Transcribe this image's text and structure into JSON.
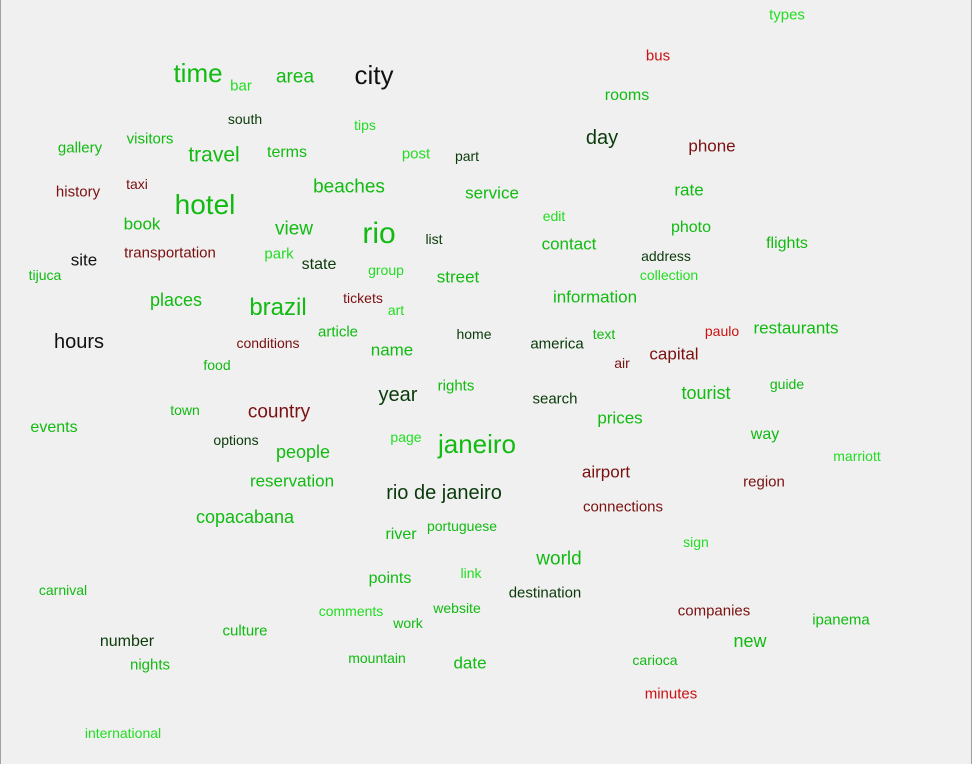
{
  "palette": {
    "bright_green": "#22dd22",
    "green": "#11bb11",
    "dark_green": "#117711",
    "darkest_green": "#0a3a0a",
    "black": "#111111",
    "red": "#cc1111",
    "dark_red": "#7a1010"
  },
  "words": [
    {
      "text": "types",
      "tone": "bright_green",
      "size": 15
    },
    {
      "text": "bus",
      "tone": "red",
      "size": 15
    },
    {
      "text": "time",
      "tone": "green",
      "size": 26
    },
    {
      "text": "bar",
      "tone": "bright_green",
      "size": 15
    },
    {
      "text": "area",
      "tone": "green",
      "size": 19
    },
    {
      "text": "city",
      "tone": "black",
      "size": 26
    },
    {
      "text": "rooms",
      "tone": "green",
      "size": 16
    },
    {
      "text": "south",
      "tone": "darkest_green",
      "size": 14
    },
    {
      "text": "tips",
      "tone": "bright_green",
      "size": 14
    },
    {
      "text": "visitors",
      "tone": "green",
      "size": 15
    },
    {
      "text": "gallery",
      "tone": "green",
      "size": 15
    },
    {
      "text": "travel",
      "tone": "green",
      "size": 21
    },
    {
      "text": "terms",
      "tone": "green",
      "size": 16
    },
    {
      "text": "post",
      "tone": "bright_green",
      "size": 15
    },
    {
      "text": "part",
      "tone": "darkest_green",
      "size": 14
    },
    {
      "text": "day",
      "tone": "darkest_green",
      "size": 20
    },
    {
      "text": "phone",
      "tone": "dark_red",
      "size": 17
    },
    {
      "text": "history",
      "tone": "dark_red",
      "size": 15
    },
    {
      "text": "taxi",
      "tone": "dark_red",
      "size": 14
    },
    {
      "text": "beaches",
      "tone": "green",
      "size": 19
    },
    {
      "text": "service",
      "tone": "green",
      "size": 17
    },
    {
      "text": "rate",
      "tone": "green",
      "size": 17
    },
    {
      "text": "hotel",
      "tone": "green",
      "size": 28
    },
    {
      "text": "edit",
      "tone": "bright_green",
      "size": 14
    },
    {
      "text": "book",
      "tone": "green",
      "size": 17
    },
    {
      "text": "view",
      "tone": "green",
      "size": 19
    },
    {
      "text": "rio",
      "tone": "green",
      "size": 30
    },
    {
      "text": "list",
      "tone": "darkest_green",
      "size": 14
    },
    {
      "text": "photo",
      "tone": "green",
      "size": 16
    },
    {
      "text": "contact",
      "tone": "green",
      "size": 17
    },
    {
      "text": "flights",
      "tone": "green",
      "size": 16
    },
    {
      "text": "site",
      "tone": "black",
      "size": 17
    },
    {
      "text": "transportation",
      "tone": "dark_red",
      "size": 15
    },
    {
      "text": "park",
      "tone": "bright_green",
      "size": 15
    },
    {
      "text": "state",
      "tone": "darkest_green",
      "size": 16
    },
    {
      "text": "address",
      "tone": "darkest_green",
      "size": 14
    },
    {
      "text": "tijuca",
      "tone": "green",
      "size": 14
    },
    {
      "text": "group",
      "tone": "bright_green",
      "size": 14
    },
    {
      "text": "street",
      "tone": "green",
      "size": 17
    },
    {
      "text": "collection",
      "tone": "bright_green",
      "size": 14
    },
    {
      "text": "tickets",
      "tone": "dark_red",
      "size": 14
    },
    {
      "text": "information",
      "tone": "green",
      "size": 17
    },
    {
      "text": "places",
      "tone": "green",
      "size": 18
    },
    {
      "text": "brazil",
      "tone": "green",
      "size": 24
    },
    {
      "text": "art",
      "tone": "bright_green",
      "size": 14
    },
    {
      "text": "restaurants",
      "tone": "green",
      "size": 17
    },
    {
      "text": "article",
      "tone": "green",
      "size": 15
    },
    {
      "text": "home",
      "tone": "darkest_green",
      "size": 14
    },
    {
      "text": "text",
      "tone": "green",
      "size": 14
    },
    {
      "text": "paulo",
      "tone": "red",
      "size": 14
    },
    {
      "text": "hours",
      "tone": "black",
      "size": 20
    },
    {
      "text": "conditions",
      "tone": "dark_red",
      "size": 14
    },
    {
      "text": "name",
      "tone": "green",
      "size": 17
    },
    {
      "text": "america",
      "tone": "darkest_green",
      "size": 15
    },
    {
      "text": "capital",
      "tone": "dark_red",
      "size": 17
    },
    {
      "text": "food",
      "tone": "green",
      "size": 14
    },
    {
      "text": "air",
      "tone": "dark_red",
      "size": 14
    },
    {
      "text": "rights",
      "tone": "green",
      "size": 15
    },
    {
      "text": "year",
      "tone": "darkest_green",
      "size": 20
    },
    {
      "text": "tourist",
      "tone": "green",
      "size": 18
    },
    {
      "text": "guide",
      "tone": "green",
      "size": 14
    },
    {
      "text": "search",
      "tone": "darkest_green",
      "size": 15
    },
    {
      "text": "town",
      "tone": "green",
      "size": 14
    },
    {
      "text": "country",
      "tone": "dark_red",
      "size": 19
    },
    {
      "text": "prices",
      "tone": "green",
      "size": 17
    },
    {
      "text": "events",
      "tone": "green",
      "size": 16
    },
    {
      "text": "options",
      "tone": "darkest_green",
      "size": 14
    },
    {
      "text": "page",
      "tone": "bright_green",
      "size": 14
    },
    {
      "text": "janeiro",
      "tone": "green",
      "size": 26
    },
    {
      "text": "way",
      "tone": "green",
      "size": 16
    },
    {
      "text": "people",
      "tone": "green",
      "size": 18
    },
    {
      "text": "marriott",
      "tone": "bright_green",
      "size": 14
    },
    {
      "text": "airport",
      "tone": "dark_red",
      "size": 17
    },
    {
      "text": "reservation",
      "tone": "green",
      "size": 17
    },
    {
      "text": "region",
      "tone": "dark_red",
      "size": 15
    },
    {
      "text": "rio de janeiro",
      "tone": "darkest_green",
      "size": 20
    },
    {
      "text": "connections",
      "tone": "dark_red",
      "size": 15
    },
    {
      "text": "copacabana",
      "tone": "green",
      "size": 18
    },
    {
      "text": "portuguese",
      "tone": "green",
      "size": 14
    },
    {
      "text": "river",
      "tone": "green",
      "size": 16
    },
    {
      "text": "sign",
      "tone": "bright_green",
      "size": 14
    },
    {
      "text": "world",
      "tone": "green",
      "size": 19
    },
    {
      "text": "link",
      "tone": "bright_green",
      "size": 14
    },
    {
      "text": "points",
      "tone": "green",
      "size": 16
    },
    {
      "text": "carnival",
      "tone": "green",
      "size": 14
    },
    {
      "text": "destination",
      "tone": "darkest_green",
      "size": 15
    },
    {
      "text": "website",
      "tone": "green",
      "size": 14
    },
    {
      "text": "comments",
      "tone": "bright_green",
      "size": 14
    },
    {
      "text": "companies",
      "tone": "dark_red",
      "size": 15
    },
    {
      "text": "ipanema",
      "tone": "green",
      "size": 15
    },
    {
      "text": "work",
      "tone": "green",
      "size": 14
    },
    {
      "text": "culture",
      "tone": "green",
      "size": 15
    },
    {
      "text": "number",
      "tone": "darkest_green",
      "size": 16
    },
    {
      "text": "new",
      "tone": "green",
      "size": 18
    },
    {
      "text": "mountain",
      "tone": "green",
      "size": 14
    },
    {
      "text": "date",
      "tone": "green",
      "size": 17
    },
    {
      "text": "carioca",
      "tone": "green",
      "size": 14
    },
    {
      "text": "nights",
      "tone": "green",
      "size": 15
    },
    {
      "text": "minutes",
      "tone": "red",
      "size": 15
    },
    {
      "text": "international",
      "tone": "bright_green",
      "size": 14
    }
  ]
}
